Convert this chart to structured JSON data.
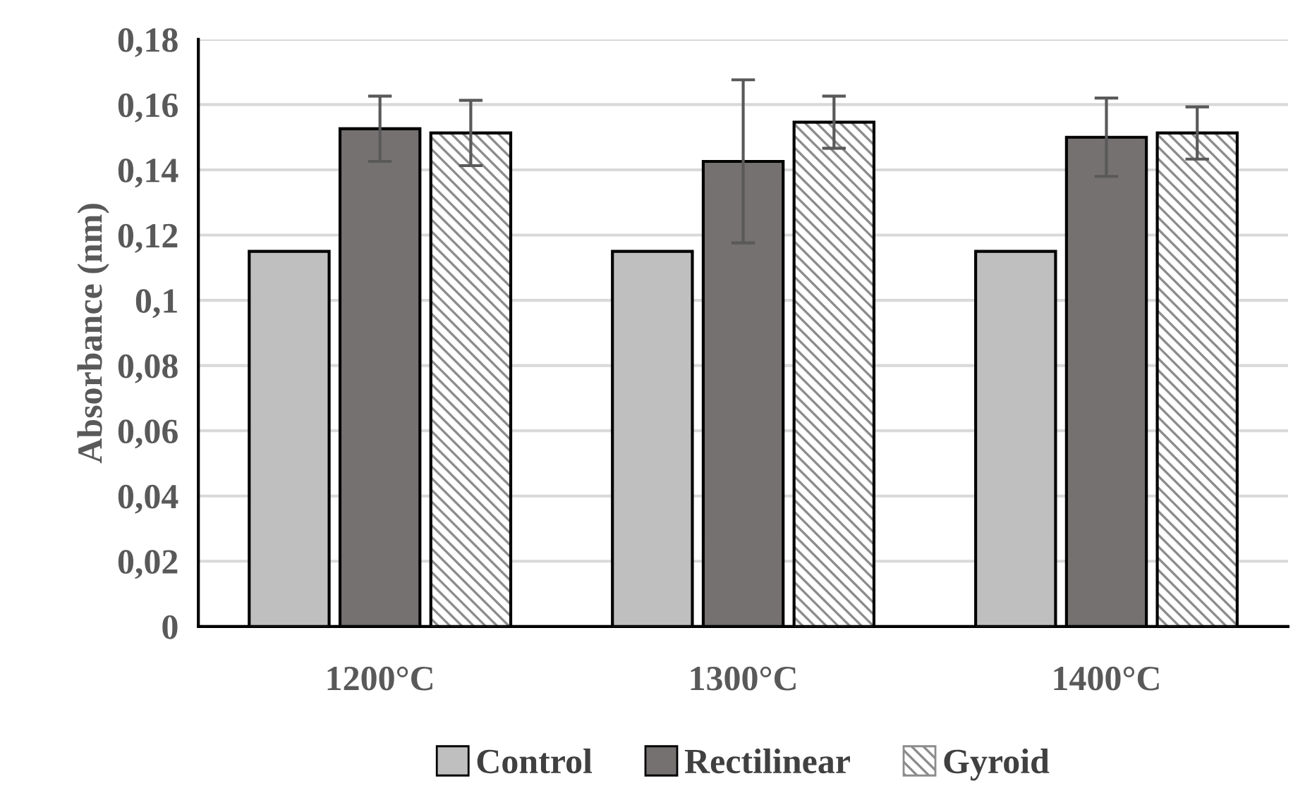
{
  "chart_data": {
    "type": "bar",
    "ylabel": "Absorbance (nm)",
    "categories": [
      "1200°C",
      "1300°C",
      "1400°C"
    ],
    "series": [
      {
        "name": "Control",
        "color": "#bfbfbf",
        "values": [
          0.115,
          0.115,
          0.115
        ]
      },
      {
        "name": "Rectilinear",
        "color": "#767171",
        "values": [
          0.1526,
          0.1426,
          0.15
        ],
        "errors": [
          0.01,
          0.025,
          0.012
        ]
      },
      {
        "name": "Gyroid",
        "color": "#8c8c8c",
        "values": [
          0.1513,
          0.1546,
          0.1513
        ],
        "errors": [
          0.01,
          0.008,
          0.008
        ]
      }
    ],
    "ylim": [
      0,
      0.18
    ],
    "yticks": [
      {
        "value": 0,
        "label": "0"
      },
      {
        "value": 0.02,
        "label": "0,02"
      },
      {
        "value": 0.04,
        "label": "0,04"
      },
      {
        "value": 0.06,
        "label": "0,06"
      },
      {
        "value": 0.08,
        "label": "0,08"
      },
      {
        "value": 0.1,
        "label": "0,1"
      },
      {
        "value": 0.12,
        "label": "0,12"
      },
      {
        "value": 0.14,
        "label": "0,14"
      },
      {
        "value": 0.16,
        "label": "0,16"
      },
      {
        "value": 0.18,
        "label": "0,18"
      }
    ],
    "grid": "y",
    "legend": "bottom"
  }
}
